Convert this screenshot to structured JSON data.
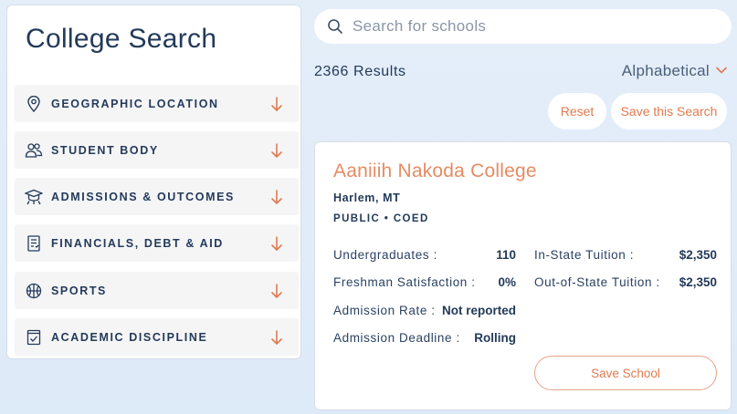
{
  "sidebar": {
    "title": "College Search",
    "filters": [
      {
        "label": "GEOGRAPHIC LOCATION",
        "icon": "location-pin-icon"
      },
      {
        "label": "STUDENT BODY",
        "icon": "people-icon"
      },
      {
        "label": "ADMISSIONS & OUTCOMES",
        "icon": "graduation-cap-icon"
      },
      {
        "label": "FINANCIALS, DEBT & AID",
        "icon": "document-icon"
      },
      {
        "label": "SPORTS",
        "icon": "basketball-icon"
      },
      {
        "label": "ACADEMIC DISCIPLINE",
        "icon": "checkbox-book-icon"
      }
    ],
    "arrow_icon": "arrow-down-icon"
  },
  "search": {
    "placeholder": "Search for schools",
    "value": ""
  },
  "results": {
    "count_text": "2366 Results",
    "sort_label": "Alphabetical",
    "reset_label": "Reset",
    "save_search_label": "Save this Search"
  },
  "school": {
    "name": "Aaniiih Nakoda College",
    "location": "Harlem, MT",
    "type": "PUBLIC • COED",
    "stats_left": [
      {
        "label": "Undergraduates :",
        "value": "110"
      },
      {
        "label": "Freshman Satisfaction :",
        "value": "0%"
      },
      {
        "label": "Admission Rate :",
        "value": "Not reported"
      },
      {
        "label": "Admission Deadline :",
        "value": "Rolling"
      }
    ],
    "stats_right": [
      {
        "label": "In-State Tuition :",
        "value": "$2,350"
      },
      {
        "label": "Out-of-State Tuition :",
        "value": "$2,350"
      }
    ],
    "save_label": "Save School"
  },
  "colors": {
    "navy": "#233a5a",
    "accent": "#e07a50",
    "background": "#e4eef9"
  }
}
